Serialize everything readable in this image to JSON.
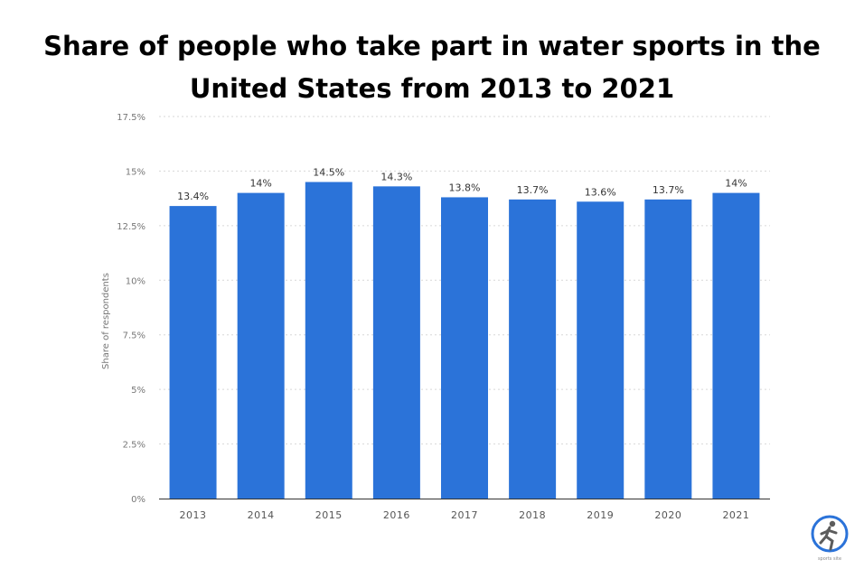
{
  "title": "Share of people who take part in water sports in the United States from 2013 to 2021",
  "chart_data": {
    "type": "bar",
    "categories": [
      "2013",
      "2014",
      "2015",
      "2016",
      "2017",
      "2018",
      "2019",
      "2020",
      "2021"
    ],
    "values": [
      13.4,
      14,
      14.5,
      14.3,
      13.8,
      13.7,
      13.6,
      13.7,
      14
    ],
    "value_labels": [
      "13.4%",
      "14%",
      "14.5%",
      "14.3%",
      "13.8%",
      "13.7%",
      "13.6%",
      "13.7%",
      "14%"
    ],
    "xlabel": "",
    "ylabel": "Share of respondents",
    "ylim": [
      0,
      17.5
    ],
    "yticks": [
      0,
      2.5,
      5,
      7.5,
      10,
      12.5,
      15,
      17.5
    ],
    "ytick_labels": [
      "0%",
      "2.5%",
      "5%",
      "7.5%",
      "10%",
      "12.5%",
      "15%",
      "17.5%"
    ],
    "grid": true,
    "bar_color": "#2b73d9"
  },
  "logo": {
    "icon": "runner-logo-icon",
    "ring_color": "#2b73d9",
    "figure_color": "#5c5c5c",
    "caption": "sports site"
  }
}
